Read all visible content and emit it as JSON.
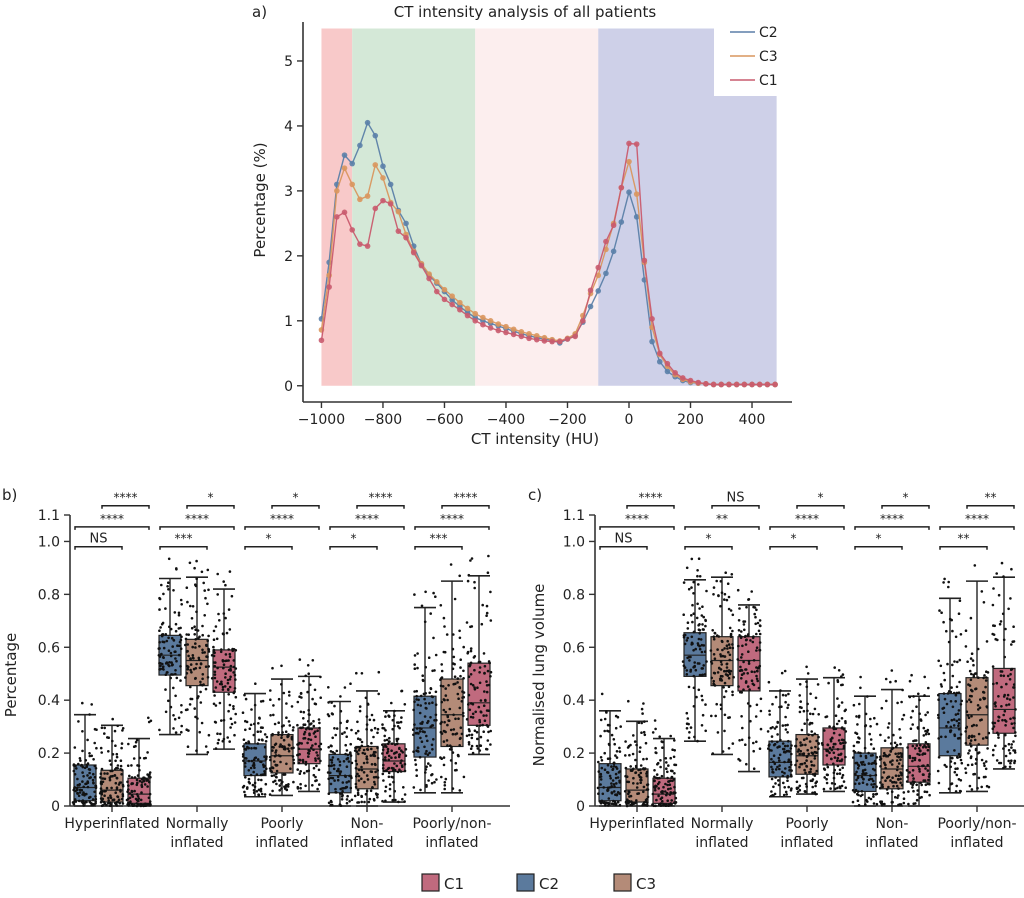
{
  "chart_data": [
    {
      "panel": "a)",
      "type": "line",
      "title": "CT intensity analysis of all patients",
      "xlabel": "CT intensity (HU)",
      "ylabel": "Percentage (%)",
      "xlim": [
        -1060,
        530
      ],
      "ylim": [
        -0.25,
        5.6
      ],
      "xticks": [
        -1000,
        -800,
        -600,
        -400,
        -200,
        0,
        200,
        400
      ],
      "xtick_labels": [
        "−1000",
        "−800",
        "−600",
        "−400",
        "−200",
        "0",
        "200",
        "400"
      ],
      "yticks": [
        0,
        1,
        2,
        3,
        4,
        5
      ],
      "ytick_labels": [
        "0",
        "1",
        "2",
        "3",
        "4",
        "5"
      ],
      "grid": false,
      "legend_position": "top-right",
      "bands": [
        {
          "x0": -1000,
          "x1": -900,
          "color": "#f7c3c3"
        },
        {
          "x0": -900,
          "x1": -500,
          "color": "#cfe5d3"
        },
        {
          "x0": -500,
          "x1": -100,
          "color": "#fcecec"
        },
        {
          "x0": -100,
          "x1": 480,
          "color": "#c9cbe6"
        }
      ],
      "x": [
        -1000,
        -975,
        -950,
        -925,
        -900,
        -875,
        -850,
        -825,
        -800,
        -775,
        -750,
        -725,
        -700,
        -675,
        -650,
        -625,
        -600,
        -575,
        -550,
        -525,
        -500,
        -475,
        -450,
        -425,
        -400,
        -375,
        -350,
        -325,
        -300,
        -275,
        -250,
        -225,
        -200,
        -175,
        -150,
        -125,
        -100,
        -75,
        -50,
        -25,
        0,
        25,
        50,
        75,
        100,
        125,
        150,
        175,
        200,
        225,
        250,
        275,
        300,
        325,
        350,
        375,
        400,
        425,
        450,
        475
      ],
      "series": [
        {
          "name": "C2",
          "color": "#5b7fa8",
          "values": [
            1.03,
            1.9,
            3.1,
            3.55,
            3.42,
            3.7,
            4.05,
            3.85,
            3.38,
            3.1,
            2.7,
            2.5,
            2.15,
            1.87,
            1.7,
            1.58,
            1.45,
            1.32,
            1.22,
            1.13,
            1.05,
            1.0,
            0.96,
            0.92,
            0.88,
            0.84,
            0.8,
            0.77,
            0.74,
            0.72,
            0.7,
            0.66,
            0.72,
            0.78,
            0.98,
            1.22,
            1.46,
            1.73,
            2.07,
            2.52,
            2.98,
            2.6,
            1.63,
            0.68,
            0.37,
            0.22,
            0.14,
            0.08,
            0.05,
            0.04,
            0.03,
            0.02,
            0.02,
            0.02,
            0.02,
            0.02,
            0.02,
            0.02,
            0.02,
            0.02
          ]
        },
        {
          "name": "C3",
          "color": "#d9965e",
          "values": [
            0.86,
            1.7,
            3.0,
            3.35,
            3.1,
            2.87,
            2.92,
            3.4,
            3.2,
            2.82,
            2.68,
            2.33,
            2.07,
            1.88,
            1.72,
            1.6,
            1.48,
            1.38,
            1.28,
            1.19,
            1.11,
            1.05,
            1.0,
            0.95,
            0.91,
            0.87,
            0.83,
            0.8,
            0.77,
            0.74,
            0.71,
            0.69,
            0.73,
            0.8,
            1.08,
            1.42,
            1.7,
            2.1,
            2.5,
            3.05,
            3.45,
            2.95,
            1.9,
            0.9,
            0.48,
            0.3,
            0.17,
            0.1,
            0.06,
            0.04,
            0.03,
            0.02,
            0.02,
            0.02,
            0.02,
            0.02,
            0.02,
            0.02,
            0.02,
            0.02
          ]
        },
        {
          "name": "C1",
          "color": "#c95b6e",
          "values": [
            0.7,
            1.52,
            2.6,
            2.67,
            2.4,
            2.18,
            2.15,
            2.73,
            2.85,
            2.8,
            2.38,
            2.28,
            2.05,
            1.85,
            1.65,
            1.45,
            1.33,
            1.25,
            1.17,
            1.08,
            1.0,
            0.94,
            0.89,
            0.85,
            0.82,
            0.79,
            0.76,
            0.73,
            0.71,
            0.69,
            0.68,
            0.68,
            0.72,
            0.76,
            1.0,
            1.47,
            1.82,
            2.22,
            2.47,
            3.05,
            3.73,
            3.72,
            1.93,
            1.03,
            0.5,
            0.34,
            0.2,
            0.12,
            0.08,
            0.05,
            0.03,
            0.02,
            0.02,
            0.02,
            0.02,
            0.02,
            0.02,
            0.02,
            0.02,
            0.02
          ]
        }
      ]
    },
    {
      "panel": "b)",
      "type": "box",
      "ylabel": "Percentage",
      "ylim": [
        0,
        1.1
      ],
      "yticks": [
        0,
        0.2,
        0.4,
        0.6,
        0.8,
        1.0,
        1.1
      ],
      "ytick_labels": [
        "0",
        "0.2",
        "0.4",
        "0.6",
        "0.8",
        "1.0",
        "1.1"
      ],
      "categories": [
        "Hyperinflated",
        "Normally\ninflated",
        "Poorly\ninflated",
        "Non-\ninflated",
        "Poorly/non-\ninflated"
      ],
      "series_order": [
        "C2",
        "C3",
        "C1"
      ],
      "groups": [
        {
          "boxes": [
            {
              "series": "C2",
              "q1": 0.02,
              "median": 0.07,
              "q3": 0.155,
              "whisker_low": 0.0,
              "whisker_high": 0.345
            },
            {
              "series": "C3",
              "q1": 0.015,
              "median": 0.06,
              "q3": 0.135,
              "whisker_low": 0.0,
              "whisker_high": 0.305
            },
            {
              "series": "C1",
              "q1": 0.01,
              "median": 0.045,
              "q3": 0.105,
              "whisker_low": 0.0,
              "whisker_high": 0.255
            }
          ],
          "significance": [
            {
              "pair": [
                "C2",
                "C3"
              ],
              "label": "NS"
            },
            {
              "pair": [
                "C2",
                "C1"
              ],
              "label": "****"
            },
            {
              "pair": [
                "C3",
                "C1"
              ],
              "label": "****"
            }
          ]
        },
        {
          "boxes": [
            {
              "series": "C2",
              "q1": 0.495,
              "median": 0.57,
              "q3": 0.645,
              "whisker_low": 0.27,
              "whisker_high": 0.86
            },
            {
              "series": "C3",
              "q1": 0.455,
              "median": 0.55,
              "q3": 0.63,
              "whisker_low": 0.195,
              "whisker_high": 0.865
            },
            {
              "series": "C1",
              "q1": 0.43,
              "median": 0.525,
              "q3": 0.59,
              "whisker_low": 0.215,
              "whisker_high": 0.82
            }
          ],
          "significance": [
            {
              "pair": [
                "C2",
                "C3"
              ],
              "label": "***"
            },
            {
              "pair": [
                "C2",
                "C1"
              ],
              "label": "****"
            },
            {
              "pair": [
                "C3",
                "C1"
              ],
              "label": "*"
            }
          ]
        },
        {
          "boxes": [
            {
              "series": "C2",
              "q1": 0.115,
              "median": 0.17,
              "q3": 0.235,
              "whisker_low": 0.035,
              "whisker_high": 0.425
            },
            {
              "series": "C3",
              "q1": 0.125,
              "median": 0.19,
              "q3": 0.27,
              "whisker_low": 0.04,
              "whisker_high": 0.48
            },
            {
              "series": "C1",
              "q1": 0.16,
              "median": 0.215,
              "q3": 0.295,
              "whisker_low": 0.055,
              "whisker_high": 0.49
            }
          ],
          "significance": [
            {
              "pair": [
                "C2",
                "C3"
              ],
              "label": "*"
            },
            {
              "pair": [
                "C2",
                "C1"
              ],
              "label": "****"
            },
            {
              "pair": [
                "C3",
                "C1"
              ],
              "label": "*"
            }
          ]
        },
        {
          "boxes": [
            {
              "series": "C2",
              "q1": 0.05,
              "median": 0.115,
              "q3": 0.195,
              "whisker_low": 0.0,
              "whisker_high": 0.395
            },
            {
              "series": "C3",
              "q1": 0.065,
              "median": 0.14,
              "q3": 0.225,
              "whisker_low": 0.0,
              "whisker_high": 0.435
            },
            {
              "series": "C1",
              "q1": 0.13,
              "median": 0.17,
              "q3": 0.235,
              "whisker_low": 0.015,
              "whisker_high": 0.36
            }
          ],
          "significance": [
            {
              "pair": [
                "C2",
                "C3"
              ],
              "label": "*"
            },
            {
              "pair": [
                "C2",
                "C1"
              ],
              "label": "****"
            },
            {
              "pair": [
                "C3",
                "C1"
              ],
              "label": "****"
            }
          ]
        },
        {
          "boxes": [
            {
              "series": "C2",
              "q1": 0.185,
              "median": 0.295,
              "q3": 0.415,
              "whisker_low": 0.05,
              "whisker_high": 0.75
            },
            {
              "series": "C3",
              "q1": 0.225,
              "median": 0.345,
              "q3": 0.48,
              "whisker_low": 0.05,
              "whisker_high": 0.85
            },
            {
              "series": "C1",
              "q1": 0.305,
              "median": 0.39,
              "q3": 0.54,
              "whisker_low": 0.195,
              "whisker_high": 0.87
            }
          ],
          "significance": [
            {
              "pair": [
                "C2",
                "C3"
              ],
              "label": "***"
            },
            {
              "pair": [
                "C2",
                "C1"
              ],
              "label": "****"
            },
            {
              "pair": [
                "C3",
                "C1"
              ],
              "label": "****"
            }
          ]
        }
      ]
    },
    {
      "panel": "c)",
      "type": "box",
      "ylabel": "Normalised lung volume",
      "ylim": [
        0,
        1.1
      ],
      "yticks": [
        0,
        0.2,
        0.4,
        0.6,
        0.8,
        1.0,
        1.1
      ],
      "ytick_labels": [
        "0",
        "0.2",
        "0.4",
        "0.6",
        "0.8",
        "1.0",
        "1.1"
      ],
      "categories": [
        "Hyperinflated",
        "Normally\ninflated",
        "Poorly\ninflated",
        "Non-\ninflated",
        "Poorly/non-\ninflated"
      ],
      "series_order": [
        "C2",
        "C3",
        "C1"
      ],
      "groups": [
        {
          "boxes": [
            {
              "series": "C2",
              "q1": 0.02,
              "median": 0.07,
              "q3": 0.16,
              "whisker_low": 0.0,
              "whisker_high": 0.36
            },
            {
              "series": "C3",
              "q1": 0.015,
              "median": 0.06,
              "q3": 0.14,
              "whisker_low": 0.0,
              "whisker_high": 0.32
            },
            {
              "series": "C1",
              "q1": 0.01,
              "median": 0.045,
              "q3": 0.105,
              "whisker_low": 0.0,
              "whisker_high": 0.255
            }
          ],
          "significance": [
            {
              "pair": [
                "C2",
                "C3"
              ],
              "label": "NS"
            },
            {
              "pair": [
                "C2",
                "C1"
              ],
              "label": "****"
            },
            {
              "pair": [
                "C3",
                "C1"
              ],
              "label": "****"
            }
          ]
        },
        {
          "boxes": [
            {
              "series": "C2",
              "q1": 0.49,
              "median": 0.57,
              "q3": 0.655,
              "whisker_low": 0.245,
              "whisker_high": 0.855
            },
            {
              "series": "C3",
              "q1": 0.455,
              "median": 0.55,
              "q3": 0.64,
              "whisker_low": 0.195,
              "whisker_high": 0.865
            },
            {
              "series": "C1",
              "q1": 0.435,
              "median": 0.55,
              "q3": 0.64,
              "whisker_low": 0.13,
              "whisker_high": 0.76
            }
          ],
          "significance": [
            {
              "pair": [
                "C2",
                "C3"
              ],
              "label": "*"
            },
            {
              "pair": [
                "C2",
                "C1"
              ],
              "label": "**"
            },
            {
              "pair": [
                "C3",
                "C1"
              ],
              "label": "NS"
            }
          ]
        },
        {
          "boxes": [
            {
              "series": "C2",
              "q1": 0.11,
              "median": 0.165,
              "q3": 0.245,
              "whisker_low": 0.035,
              "whisker_high": 0.435
            },
            {
              "series": "C3",
              "q1": 0.12,
              "median": 0.19,
              "q3": 0.27,
              "whisker_low": 0.045,
              "whisker_high": 0.48
            },
            {
              "series": "C1",
              "q1": 0.155,
              "median": 0.215,
              "q3": 0.295,
              "whisker_low": 0.055,
              "whisker_high": 0.485
            }
          ],
          "significance": [
            {
              "pair": [
                "C2",
                "C3"
              ],
              "label": "*"
            },
            {
              "pair": [
                "C2",
                "C1"
              ],
              "label": "****"
            },
            {
              "pair": [
                "C3",
                "C1"
              ],
              "label": "*"
            }
          ]
        },
        {
          "boxes": [
            {
              "series": "C2",
              "q1": 0.055,
              "median": 0.115,
              "q3": 0.2,
              "whisker_low": 0.0,
              "whisker_high": 0.415
            },
            {
              "series": "C3",
              "q1": 0.065,
              "median": 0.14,
              "q3": 0.22,
              "whisker_low": 0.0,
              "whisker_high": 0.44
            },
            {
              "series": "C1",
              "q1": 0.09,
              "median": 0.15,
              "q3": 0.235,
              "whisker_low": 0.0,
              "whisker_high": 0.415
            }
          ],
          "significance": [
            {
              "pair": [
                "C2",
                "C3"
              ],
              "label": "*"
            },
            {
              "pair": [
                "C2",
                "C1"
              ],
              "label": "****"
            },
            {
              "pair": [
                "C3",
                "C1"
              ],
              "label": "*"
            }
          ]
        },
        {
          "boxes": [
            {
              "series": "C2",
              "q1": 0.19,
              "median": 0.295,
              "q3": 0.425,
              "whisker_low": 0.05,
              "whisker_high": 0.785
            },
            {
              "series": "C3",
              "q1": 0.23,
              "median": 0.345,
              "q3": 0.485,
              "whisker_low": 0.055,
              "whisker_high": 0.85
            },
            {
              "series": "C1",
              "q1": 0.275,
              "median": 0.365,
              "q3": 0.52,
              "whisker_low": 0.14,
              "whisker_high": 0.865
            }
          ],
          "significance": [
            {
              "pair": [
                "C2",
                "C3"
              ],
              "label": "**"
            },
            {
              "pair": [
                "C2",
                "C1"
              ],
              "label": "****"
            },
            {
              "pair": [
                "C3",
                "C1"
              ],
              "label": "**"
            }
          ]
        }
      ]
    }
  ],
  "box_colors": {
    "C1": "#c06a7e",
    "C2": "#5b7a9d",
    "C3": "#b48b78"
  },
  "bottom_legend": [
    {
      "label": "C1",
      "color": "#c06a7e"
    },
    {
      "label": "C2",
      "color": "#5b7a9d"
    },
    {
      "label": "C3",
      "color": "#b48b78"
    }
  ]
}
